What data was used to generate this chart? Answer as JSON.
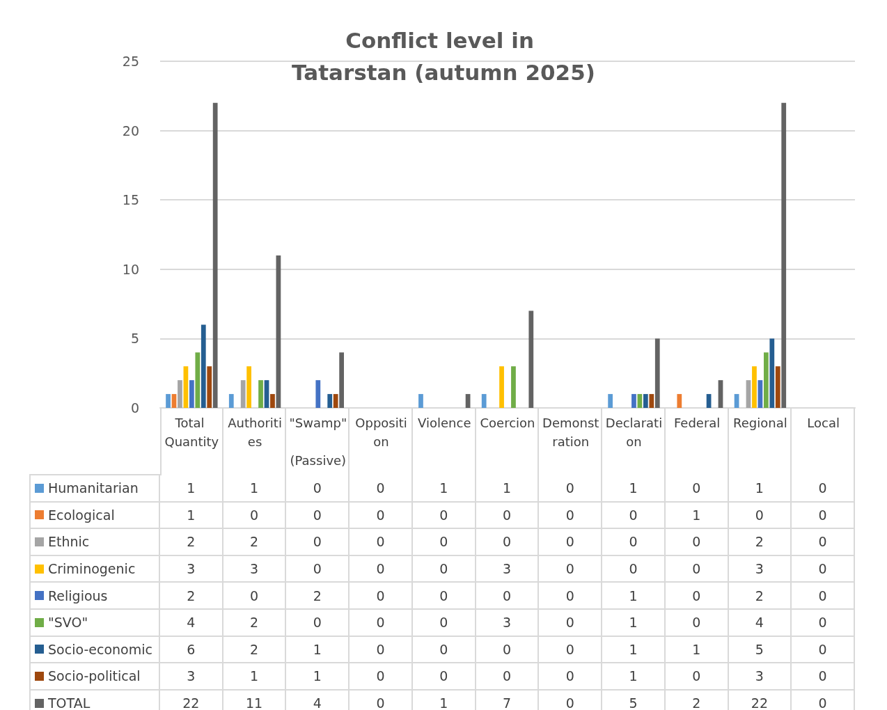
{
  "chart_data": {
    "type": "bar",
    "title": "Conflict level in Tatarstan (autumn 2025)",
    "categories": [
      "Total Quantity",
      "Authorities",
      "\"Swamp\" (Passive)",
      "Opposition",
      "Violence",
      "Coercion",
      "Demonstration",
      "Declaration",
      "Federal",
      "Regional",
      "Local"
    ],
    "series": [
      {
        "name": "Humanitarian",
        "color": "#5b9bd5",
        "values": [
          1,
          1,
          0,
          0,
          1,
          1,
          0,
          1,
          0,
          1,
          0
        ]
      },
      {
        "name": "Ecological",
        "color": "#ed7d31",
        "values": [
          1,
          0,
          0,
          0,
          0,
          0,
          0,
          0,
          1,
          0,
          0
        ]
      },
      {
        "name": "Ethnic",
        "color": "#a5a5a5",
        "values": [
          2,
          2,
          0,
          0,
          0,
          0,
          0,
          0,
          0,
          2,
          0
        ]
      },
      {
        "name": "Criminogenic",
        "color": "#ffc000",
        "values": [
          3,
          3,
          0,
          0,
          0,
          3,
          0,
          0,
          0,
          3,
          0
        ]
      },
      {
        "name": "Religious",
        "color": "#4472c4",
        "values": [
          2,
          0,
          2,
          0,
          0,
          0,
          0,
          1,
          0,
          2,
          0
        ]
      },
      {
        "name": "\"SVO\"",
        "color": "#70ad47",
        "values": [
          4,
          2,
          0,
          0,
          0,
          3,
          0,
          1,
          0,
          4,
          0
        ]
      },
      {
        "name": "Socio-economic",
        "color": "#255e91",
        "values": [
          6,
          2,
          1,
          0,
          0,
          0,
          0,
          1,
          1,
          5,
          0
        ]
      },
      {
        "name": "Socio-political",
        "color": "#9e480e",
        "values": [
          3,
          1,
          1,
          0,
          0,
          0,
          0,
          1,
          0,
          3,
          0
        ]
      },
      {
        "name": "TOTAL",
        "color": "#636363",
        "values": [
          22,
          11,
          4,
          0,
          1,
          7,
          0,
          5,
          2,
          22,
          0
        ]
      }
    ],
    "ylim": [
      0,
      25
    ],
    "yticks": [
      0,
      5,
      10,
      15,
      20,
      25
    ],
    "grid": "y",
    "legend": "bottom left",
    "data_labels": true
  }
}
